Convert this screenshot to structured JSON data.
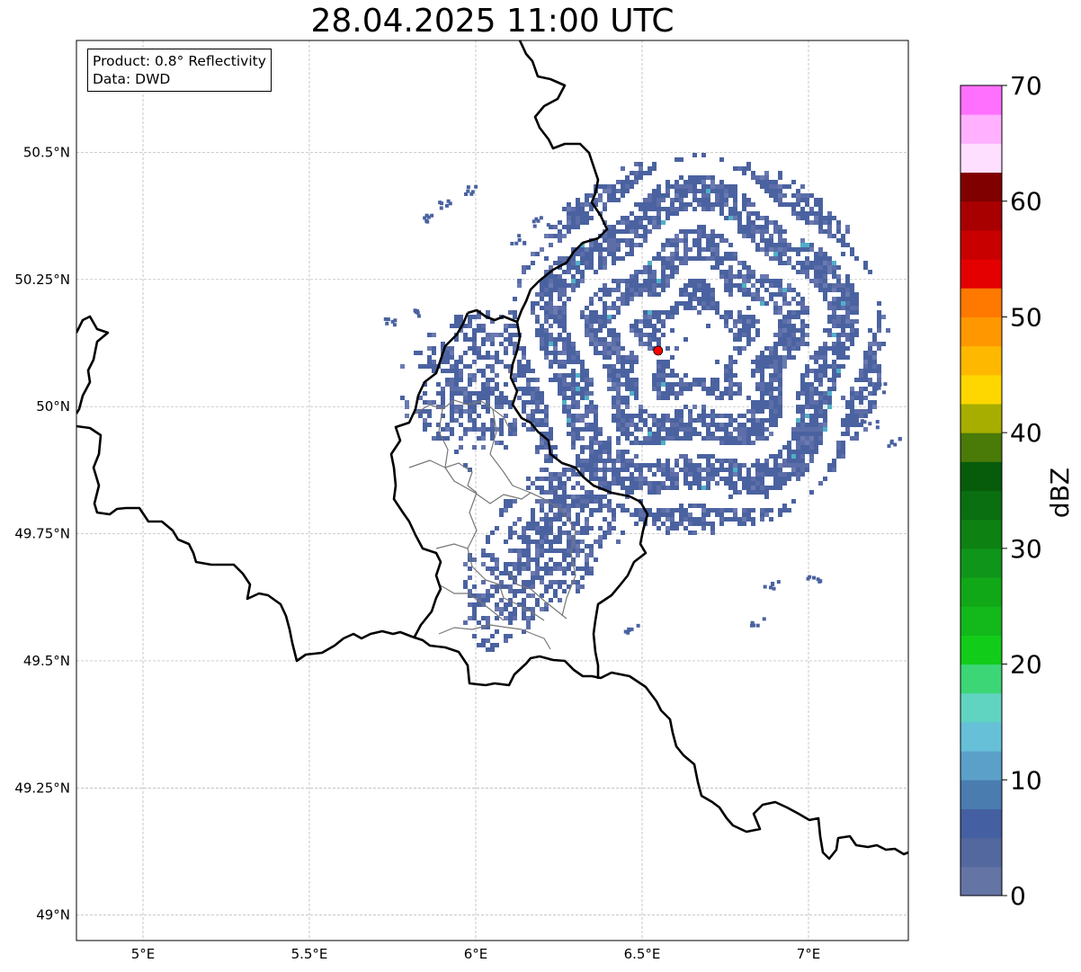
{
  "title": "28.04.2025 11:00 UTC",
  "info": {
    "product": "Product: 0.8° Reflectivity",
    "data_source": "Data: DWD"
  },
  "map": {
    "lon_range": [
      4.8,
      7.3
    ],
    "lat_range": [
      48.95,
      50.72
    ],
    "lon_ticks": [
      {
        "value": 5.0,
        "label": "5°E"
      },
      {
        "value": 5.5,
        "label": "5.5°E"
      },
      {
        "value": 6.0,
        "label": "6°E"
      },
      {
        "value": 6.5,
        "label": "6.5°E"
      },
      {
        "value": 7.0,
        "label": "7°E"
      }
    ],
    "lat_ticks": [
      {
        "value": 50.5,
        "label": "50.5°N"
      },
      {
        "value": 50.25,
        "label": "50.25°N"
      },
      {
        "value": 50.0,
        "label": "50°N"
      },
      {
        "value": 49.75,
        "label": "49.75°N"
      },
      {
        "value": 49.5,
        "label": "49.5°N"
      },
      {
        "value": 49.25,
        "label": "49.25°N"
      },
      {
        "value": 49.0,
        "label": "49°N"
      }
    ],
    "gridlines": true,
    "radar_site": {
      "lon": 6.548,
      "lat": 50.11,
      "color": "#ff0000"
    }
  },
  "colorbar": {
    "label": "dBZ",
    "min": 0,
    "max": 70,
    "step": 2.5,
    "tick_values": [
      0,
      10,
      20,
      30,
      40,
      50,
      60,
      70
    ],
    "tick_labels": [
      "0",
      "10",
      "20",
      "30",
      "40",
      "50",
      "60",
      "70"
    ],
    "colors": [
      "#6474a4",
      "#53689e",
      "#4460a2",
      "#4a7cb0",
      "#5aa0c8",
      "#66c0d8",
      "#60d4c0",
      "#3cd676",
      "#12cc1a",
      "#13b81a",
      "#11a818",
      "#0f961a",
      "#0d8212",
      "#0a6f10",
      "#075c0c",
      "#4a7a08",
      "#a8ae00",
      "#ffd700",
      "#ffb800",
      "#ff9800",
      "#ff7800",
      "#e40000",
      "#c80000",
      "#a80000",
      "#800000",
      "#ffdfff",
      "#ffb0ff",
      "#ff70ff",
      "#ee30ee"
    ]
  },
  "echo_colors": {
    "dominant": "#4a62a0",
    "secondary": "#5c6da8",
    "weak": "#6a7ab0",
    "highlight": "#4fb0c8"
  }
}
